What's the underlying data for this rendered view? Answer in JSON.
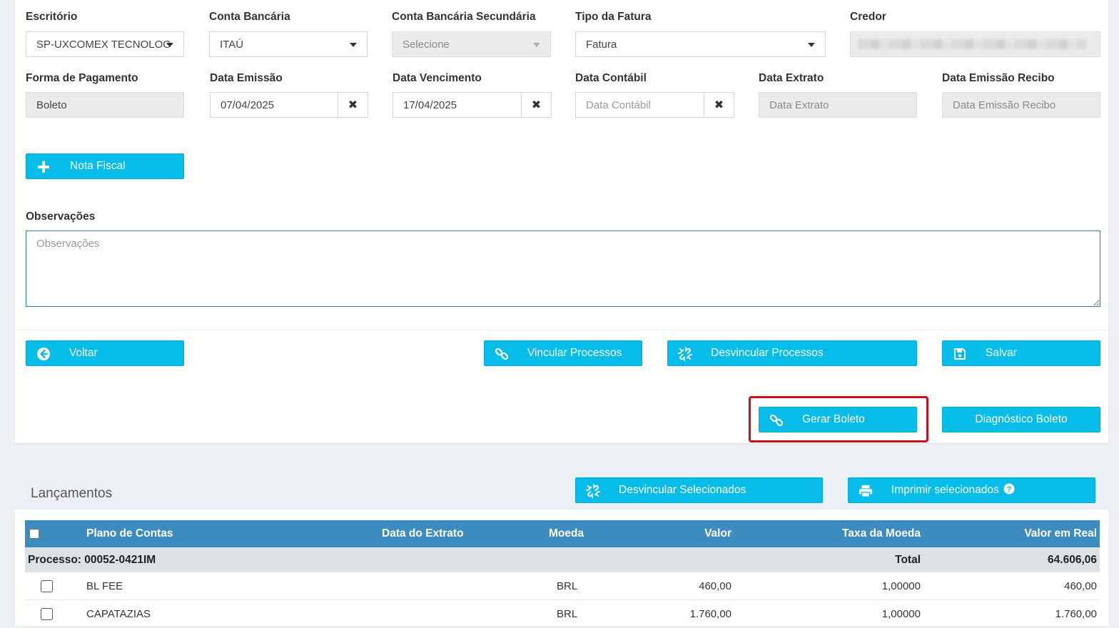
{
  "form": {
    "escritorio": {
      "label": "Escritório",
      "value": "SP-UXCOMEX TECNOLOG"
    },
    "conta_bancaria": {
      "label": "Conta Bancária",
      "value": "ITAÚ"
    },
    "conta_secundaria": {
      "label": "Conta Bancária Secundária",
      "placeholder": "Selecione"
    },
    "tipo_fatura": {
      "label": "Tipo da Fatura",
      "value": "Fatura"
    },
    "credor": {
      "label": "Credor"
    },
    "forma_pagamento": {
      "label": "Forma de Pagamento",
      "value": "Boleto"
    },
    "data_emissao": {
      "label": "Data Emissão",
      "value": "07/04/2025"
    },
    "data_vencimento": {
      "label": "Data Vencimento",
      "value": "17/04/2025"
    },
    "data_contabil": {
      "label": "Data Contábil",
      "placeholder": "Data Contábil"
    },
    "data_extrato": {
      "label": "Data Extrato",
      "placeholder": "Data Extrato"
    },
    "data_emissao_recibo": {
      "label": "Data Emissão Recibo",
      "placeholder": "Data Emissão Recibo"
    },
    "clear_glyph": "✖",
    "observacoes": {
      "label": "Observações",
      "placeholder": "Observações"
    }
  },
  "buttons": {
    "nota_fiscal": "Nota Fiscal",
    "voltar": "Voltar",
    "vincular": "Vincular Processos",
    "desvincular": "Desvincular Processos",
    "salvar": "Salvar",
    "gerar_boleto": "Gerar Boleto",
    "diagnostico": "Diagnóstico Boleto",
    "desvincular_selecionados": "Desvincular Selecionados",
    "imprimir_selecionados": "Imprimir selecionados"
  },
  "lancamentos": {
    "title": "Lançamentos",
    "columns": [
      "Plano de Contas",
      "Data do Extrato",
      "Moeda",
      "Valor",
      "Taxa da Moeda",
      "Valor em Real"
    ],
    "group": {
      "label": "Processo: 00052-0421IM",
      "total_label": "Total",
      "total_value": "64.606,06"
    },
    "rows": [
      {
        "plano": "BL FEE",
        "data": "",
        "moeda": "BRL",
        "valor": "460,00",
        "taxa": "1,00000",
        "real": "460,00"
      },
      {
        "plano": "CAPATAZIAS",
        "data": "",
        "moeda": "BRL",
        "valor": "1.760,00",
        "taxa": "1,00000",
        "real": "1.760,00"
      }
    ]
  },
  "colors": {
    "primary": "#05bde8",
    "table_header": "#3d8cbf",
    "highlight": "#c8101e"
  }
}
